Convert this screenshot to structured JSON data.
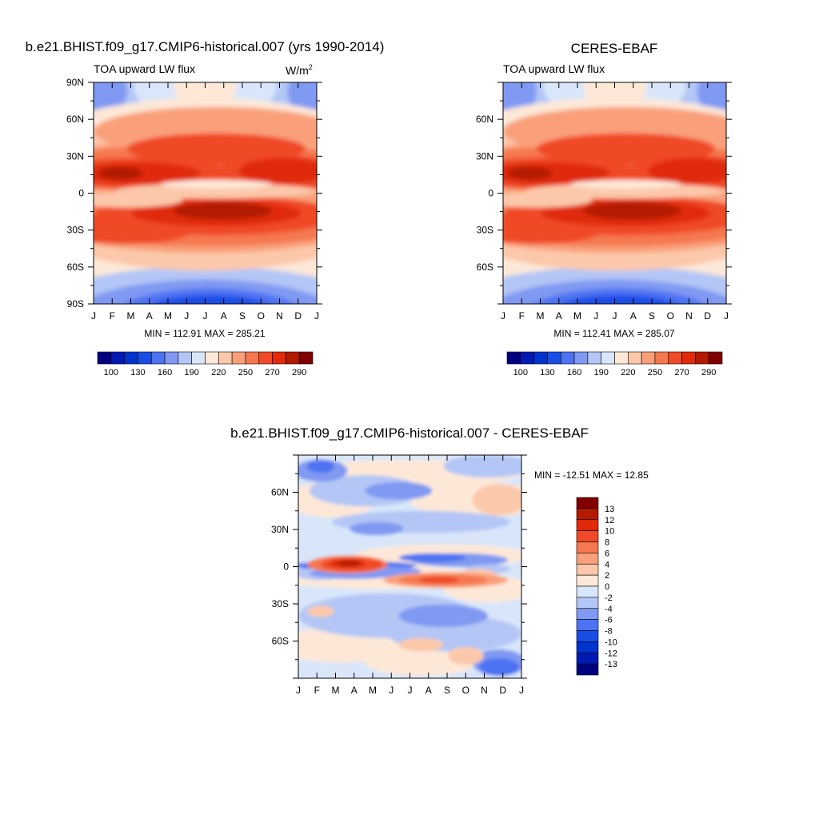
{
  "palette": [
    "#000080",
    "#0019b3",
    "#0033cc",
    "#1a4de6",
    "#4d73f2",
    "#8099f2",
    "#b3c6f5",
    "#d9e6fa",
    "#fde8d8",
    "#fcc8aa",
    "#f9a07a",
    "#f57850",
    "#f04a28",
    "#e02a0a",
    "#b31a00",
    "#800000"
  ],
  "panels": [
    {
      "title": "b.e21.BHIST.f09_g17.CMIP6-historical.007 (yrs 1990-2014)",
      "left_label": "TOA upward LW flux",
      "units_base": "W/m",
      "units_exp": "2",
      "minmax": "MIN = 112.91 MAX = 285.21",
      "lat_labels": [
        "90N",
        "60N",
        "30N",
        "0",
        "30S",
        "60S",
        "90S"
      ],
      "month_labels": [
        "J",
        "F",
        "M",
        "A",
        "M",
        "J",
        "J",
        "A",
        "S",
        "O",
        "N",
        "D",
        "J"
      ],
      "colorbar_labels": [
        "100",
        "130",
        "160",
        "190",
        "220",
        "250",
        "270",
        "290"
      ]
    },
    {
      "title": "CERES-EBAF",
      "left_label": "TOA upward LW flux",
      "minmax": "MIN = 112.41 MAX = 285.07",
      "lat_labels": [
        "60N",
        "30N",
        "0",
        "30S",
        "60S"
      ],
      "month_labels": [
        "J",
        "F",
        "M",
        "A",
        "M",
        "J",
        "J",
        "A",
        "S",
        "O",
        "N",
        "D",
        "J"
      ],
      "colorbar_labels": [
        "100",
        "130",
        "160",
        "190",
        "220",
        "250",
        "270",
        "290"
      ]
    },
    {
      "title": "b.e21.BHIST.f09_g17.CMIP6-historical.007 - CERES-EBAF",
      "minmax": "MIN = -12.51 MAX =  12.85",
      "lat_labels": [
        "60N",
        "30N",
        "0",
        "30S",
        "60S"
      ],
      "month_labels": [
        "J",
        "F",
        "M",
        "A",
        "M",
        "J",
        "J",
        "A",
        "S",
        "O",
        "N",
        "D",
        "J"
      ],
      "colorbar_labels": [
        "13",
        "12",
        "10",
        "8",
        "6",
        "4",
        "2",
        "0",
        "-2",
        "-4",
        "-6",
        "-8",
        "-10",
        "-12",
        "-13"
      ]
    }
  ],
  "chart_data": [
    {
      "type": "heatmap",
      "title": "b.e21.BHIST.f09_g17.CMIP6-historical.007 (yrs 1990-2014)",
      "x": [
        "J",
        "F",
        "M",
        "A",
        "M",
        "J",
        "J",
        "A",
        "S",
        "O",
        "N",
        "D",
        "J"
      ],
      "ylabels": [
        "90N",
        "60N",
        "30N",
        "0",
        "30S",
        "60S",
        "90S"
      ],
      "ylim": [
        -90,
        90
      ],
      "levels": [
        100,
        115,
        130,
        145,
        160,
        175,
        190,
        205,
        220,
        235,
        250,
        260,
        270,
        280,
        290
      ],
      "min": 112.91,
      "max": 285.21
    },
    {
      "type": "heatmap",
      "title": "CERES-EBAF",
      "x": [
        "J",
        "F",
        "M",
        "A",
        "M",
        "J",
        "J",
        "A",
        "S",
        "O",
        "N",
        "D",
        "J"
      ],
      "ylabels": [
        "60N",
        "30N",
        "0",
        "30S",
        "60S"
      ],
      "ylim": [
        -90,
        90
      ],
      "levels": [
        100,
        115,
        130,
        145,
        160,
        175,
        190,
        205,
        220,
        235,
        250,
        260,
        270,
        280,
        290
      ],
      "min": 112.41,
      "max": 285.07
    },
    {
      "type": "heatmap",
      "title": "b.e21.BHIST.f09_g17.CMIP6-historical.007 - CERES-EBAF",
      "x": [
        "J",
        "F",
        "M",
        "A",
        "M",
        "J",
        "J",
        "A",
        "S",
        "O",
        "N",
        "D",
        "J"
      ],
      "ylabels": [
        "60N",
        "30N",
        "0",
        "30S",
        "60S"
      ],
      "ylim": [
        -90,
        90
      ],
      "levels": [
        -13,
        -12,
        -10,
        -8,
        -6,
        -4,
        -2,
        0,
        2,
        4,
        6,
        8,
        10,
        12,
        13
      ],
      "min": -12.51,
      "max": 12.85
    }
  ]
}
